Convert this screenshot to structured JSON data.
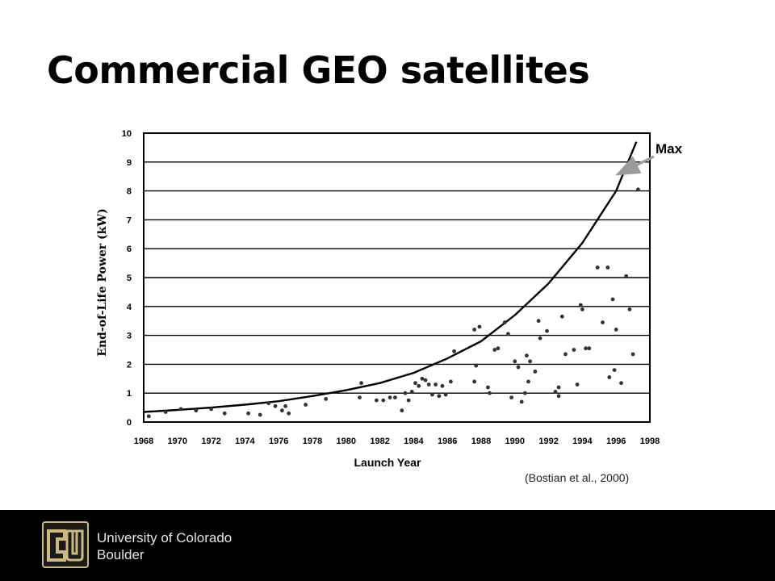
{
  "slide": {
    "title": "Commercial GEO satellites",
    "citation": "(Bostian et al., 2000)"
  },
  "footer": {
    "line1": "University of Colorado",
    "line2": "Boulder",
    "logo_icon": "cu-logo-icon",
    "logo_color": "#cfb87c"
  },
  "chart_data": {
    "type": "scatter",
    "title": "",
    "xlabel": "Launch Year",
    "ylabel": "End-of-Life Power (kW)",
    "xlim": [
      1968,
      1998
    ],
    "ylim": [
      0,
      10
    ],
    "x_ticks": [
      "1968",
      "1970",
      "1972",
      "1974",
      "1976",
      "1978",
      "1980",
      "1982",
      "1984",
      "1986",
      "1988",
      "1990",
      "1992",
      "1994",
      "1996",
      "1998"
    ],
    "y_ticks": [
      "0",
      "1",
      "2",
      "3",
      "4",
      "5",
      "6",
      "7",
      "8",
      "9",
      "10"
    ],
    "grid": "horizontal",
    "annotation": "Max",
    "series": [
      {
        "type": "line",
        "points": [
          [
            1968,
            0.35
          ],
          [
            1970,
            0.42
          ],
          [
            1972,
            0.5
          ],
          [
            1974,
            0.6
          ],
          [
            1976,
            0.72
          ],
          [
            1978,
            0.9
          ],
          [
            1980,
            1.1
          ],
          [
            1982,
            1.35
          ],
          [
            1984,
            1.7
          ],
          [
            1986,
            2.2
          ],
          [
            1988,
            2.8
          ],
          [
            1990,
            3.7
          ],
          [
            1992,
            4.8
          ],
          [
            1994,
            6.2
          ],
          [
            1996,
            8.0
          ],
          [
            1997.2,
            9.7
          ]
        ]
      },
      {
        "type": "scatter",
        "points": [
          [
            1968.3,
            0.2
          ],
          [
            1969.3,
            0.35
          ],
          [
            1970.2,
            0.45
          ],
          [
            1971.1,
            0.4
          ],
          [
            1972,
            0.45
          ],
          [
            1972.8,
            0.3
          ],
          [
            1974.2,
            0.3
          ],
          [
            1974.9,
            0.25
          ],
          [
            1975.4,
            0.65
          ],
          [
            1975.8,
            0.55
          ],
          [
            1976.2,
            0.4
          ],
          [
            1976.4,
            0.55
          ],
          [
            1976.6,
            0.3
          ],
          [
            1977.6,
            0.6
          ],
          [
            1978.8,
            0.8
          ],
          [
            1980.8,
            0.85
          ],
          [
            1980.9,
            1.35
          ],
          [
            1981.8,
            0.75
          ],
          [
            1982.2,
            0.75
          ],
          [
            1982.6,
            0.85
          ],
          [
            1982.9,
            0.85
          ],
          [
            1983.3,
            0.4
          ],
          [
            1983.5,
            1.0
          ],
          [
            1983.7,
            0.75
          ],
          [
            1983.9,
            1.05
          ],
          [
            1984.1,
            1.35
          ],
          [
            1984.3,
            1.25
          ],
          [
            1984.5,
            1.5
          ],
          [
            1984.7,
            1.45
          ],
          [
            1984.9,
            1.3
          ],
          [
            1985.1,
            0.95
          ],
          [
            1985.3,
            1.3
          ],
          [
            1985.5,
            0.9
          ],
          [
            1985.7,
            1.25
          ],
          [
            1985.9,
            0.95
          ],
          [
            1986.2,
            1.4
          ],
          [
            1986.4,
            2.45
          ],
          [
            1987.6,
            3.2
          ],
          [
            1987.9,
            3.3
          ],
          [
            1987.7,
            1.95
          ],
          [
            1987.6,
            1.4
          ],
          [
            1988.4,
            1.2
          ],
          [
            1988.5,
            1.0
          ],
          [
            1988.8,
            2.5
          ],
          [
            1989.0,
            2.55
          ],
          [
            1989.4,
            3.45
          ],
          [
            1989.6,
            3.05
          ],
          [
            1989.8,
            0.85
          ],
          [
            1990.0,
            2.1
          ],
          [
            1990.2,
            1.9
          ],
          [
            1990.4,
            0.7
          ],
          [
            1990.6,
            1.0
          ],
          [
            1990.7,
            2.3
          ],
          [
            1990.8,
            1.4
          ],
          [
            1990.9,
            2.1
          ],
          [
            1991.2,
            1.75
          ],
          [
            1991.4,
            3.5
          ],
          [
            1991.5,
            2.9
          ],
          [
            1991.9,
            3.15
          ],
          [
            1992.4,
            1.05
          ],
          [
            1992.6,
            1.2
          ],
          [
            1992.6,
            0.9
          ],
          [
            1992.8,
            3.65
          ],
          [
            1993.0,
            2.35
          ],
          [
            1993.5,
            2.5
          ],
          [
            1993.7,
            1.3
          ],
          [
            1993.9,
            4.05
          ],
          [
            1994.0,
            3.9
          ],
          [
            1994.2,
            2.55
          ],
          [
            1994.4,
            2.55
          ],
          [
            1994.9,
            5.35
          ],
          [
            1995.2,
            3.45
          ],
          [
            1995.5,
            5.35
          ],
          [
            1995.6,
            1.55
          ],
          [
            1995.8,
            4.25
          ],
          [
            1995.9,
            1.8
          ],
          [
            1996.0,
            3.2
          ],
          [
            1996.3,
            1.35
          ],
          [
            1996.6,
            5.05
          ],
          [
            1996.8,
            3.9
          ],
          [
            1997.0,
            2.35
          ],
          [
            1997.3,
            8.05
          ]
        ]
      }
    ]
  }
}
